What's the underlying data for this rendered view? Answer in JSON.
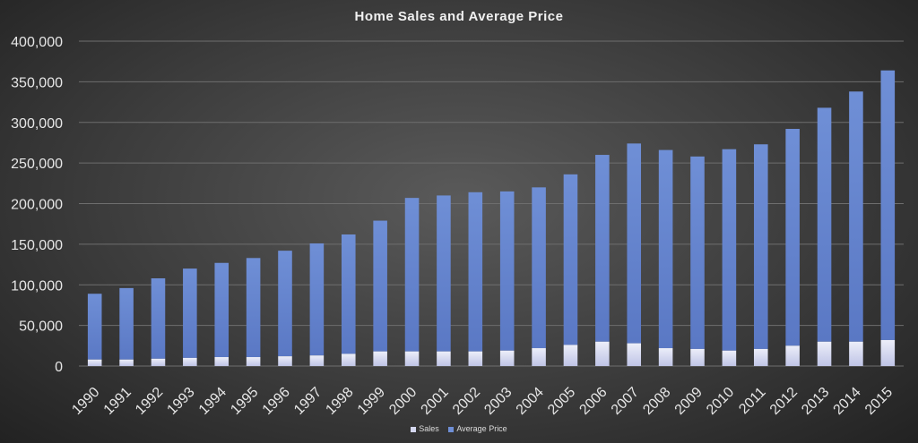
{
  "chart_data": {
    "type": "bar",
    "stacked": true,
    "title": "Home Sales and Average Price",
    "xlabel": "",
    "ylabel": "",
    "ylim": [
      0,
      400000
    ],
    "yticks": [
      0,
      50000,
      100000,
      150000,
      200000,
      250000,
      300000,
      350000,
      400000
    ],
    "ytick_labels": [
      "0",
      "50,000",
      "100,000",
      "150,000",
      "200,000",
      "250,000",
      "300,000",
      "350,000",
      "400,000"
    ],
    "grid": true,
    "legend_position": "bottom",
    "categories": [
      "1990",
      "1991",
      "1992",
      "1993",
      "1994",
      "1995",
      "1996",
      "1997",
      "1998",
      "1999",
      "2000",
      "2001",
      "2002",
      "2003",
      "2004",
      "2005",
      "2006",
      "2007",
      "2008",
      "2009",
      "2010",
      "2011",
      "2012",
      "2013",
      "2014",
      "2015"
    ],
    "series": [
      {
        "name": "Sales",
        "color": "#d4d7ef",
        "values": [
          8000,
          8000,
          9000,
          10000,
          11000,
          11000,
          12000,
          13000,
          15000,
          18000,
          18000,
          18000,
          18000,
          19000,
          22000,
          26000,
          30000,
          28000,
          22000,
          21000,
          19000,
          21000,
          25000,
          30000,
          30000,
          32000
        ]
      },
      {
        "name": "Average Price",
        "color": "#6f8fd6",
        "values": [
          81000,
          88000,
          99000,
          110000,
          116000,
          122000,
          130000,
          138000,
          147000,
          161000,
          189000,
          192000,
          196000,
          196000,
          198000,
          210000,
          230000,
          246000,
          244000,
          237000,
          248000,
          252000,
          267000,
          288000,
          308000,
          332000
        ]
      }
    ]
  }
}
